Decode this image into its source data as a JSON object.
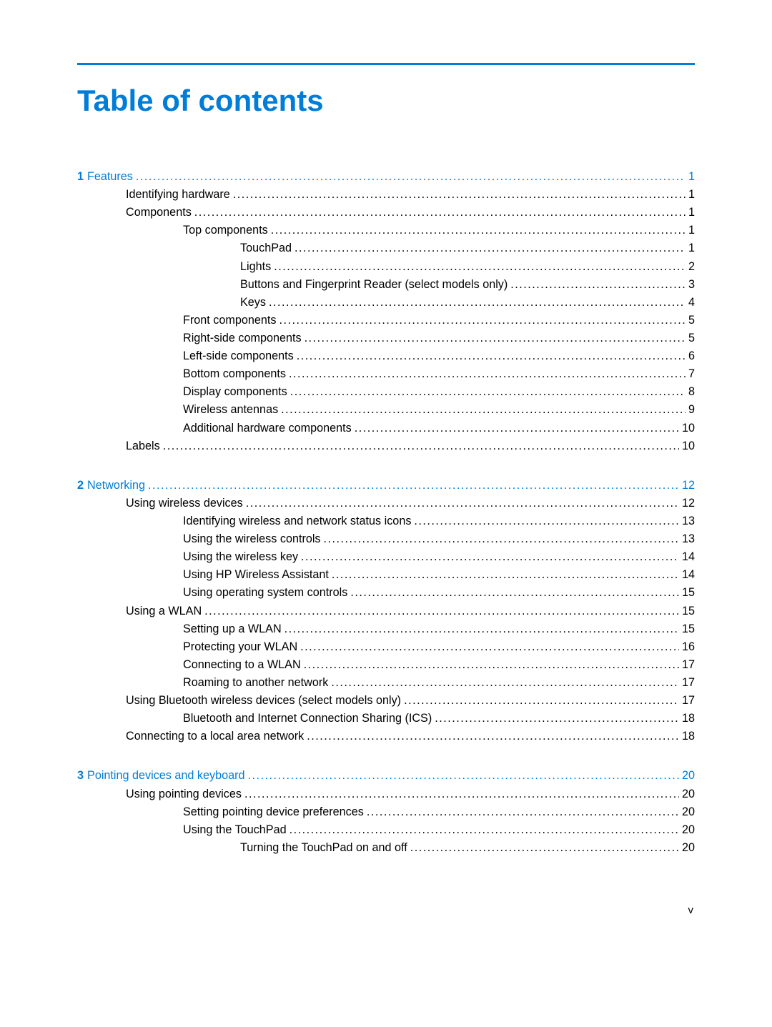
{
  "document": {
    "title": "Table of contents",
    "accent_color": "#007dd9",
    "page_number_footer": "v",
    "leader_char": "."
  },
  "sections": [
    {
      "number": "1",
      "title": "Features",
      "page": "1",
      "entries": [
        {
          "level": 1,
          "label": "Identifying hardware",
          "page": "1"
        },
        {
          "level": 1,
          "label": "Components",
          "page": "1"
        },
        {
          "level": 2,
          "label": "Top components",
          "page": "1"
        },
        {
          "level": 3,
          "label": "TouchPad",
          "page": "1"
        },
        {
          "level": 3,
          "label": "Lights",
          "page": "2"
        },
        {
          "level": 3,
          "label": "Buttons and Fingerprint Reader (select models only)",
          "page": "3"
        },
        {
          "level": 3,
          "label": "Keys",
          "page": "4"
        },
        {
          "level": 2,
          "label": "Front components",
          "page": "5"
        },
        {
          "level": 2,
          "label": "Right-side components",
          "page": "5"
        },
        {
          "level": 2,
          "label": "Left-side components",
          "page": "6"
        },
        {
          "level": 2,
          "label": "Bottom components",
          "page": "7"
        },
        {
          "level": 2,
          "label": "Display components",
          "page": "8"
        },
        {
          "level": 2,
          "label": "Wireless antennas",
          "page": "9"
        },
        {
          "level": 2,
          "label": "Additional hardware components",
          "page": "10"
        },
        {
          "level": 1,
          "label": "Labels",
          "page": "10"
        }
      ]
    },
    {
      "number": "2",
      "title": "Networking",
      "page": "12",
      "entries": [
        {
          "level": 1,
          "label": "Using wireless devices",
          "page": "12"
        },
        {
          "level": 2,
          "label": "Identifying wireless and network status icons",
          "page": "13"
        },
        {
          "level": 2,
          "label": "Using the wireless controls",
          "page": "13"
        },
        {
          "level": 2,
          "label": "Using the wireless key",
          "page": "14"
        },
        {
          "level": 2,
          "label": "Using HP Wireless Assistant",
          "page": "14"
        },
        {
          "level": 2,
          "label": "Using operating system controls",
          "page": "15"
        },
        {
          "level": 1,
          "label": "Using a WLAN",
          "page": "15"
        },
        {
          "level": 2,
          "label": "Setting up a WLAN",
          "page": "15"
        },
        {
          "level": 2,
          "label": "Protecting your WLAN",
          "page": "16"
        },
        {
          "level": 2,
          "label": "Connecting to a WLAN",
          "page": "17"
        },
        {
          "level": 2,
          "label": "Roaming to another network",
          "page": "17"
        },
        {
          "level": 1,
          "label": "Using Bluetooth wireless devices (select models only)",
          "page": "17"
        },
        {
          "level": 2,
          "label": "Bluetooth and Internet Connection Sharing (ICS)",
          "page": "18"
        },
        {
          "level": 1,
          "label": "Connecting to a local area network",
          "page": "18"
        }
      ]
    },
    {
      "number": "3",
      "title": "Pointing devices and keyboard",
      "page": "20",
      "entries": [
        {
          "level": 1,
          "label": "Using pointing devices",
          "page": "20"
        },
        {
          "level": 2,
          "label": "Setting pointing device preferences",
          "page": "20"
        },
        {
          "level": 2,
          "label": "Using the TouchPad",
          "page": "20"
        },
        {
          "level": 3,
          "label": "Turning the TouchPad on and off",
          "page": "20"
        }
      ]
    }
  ]
}
